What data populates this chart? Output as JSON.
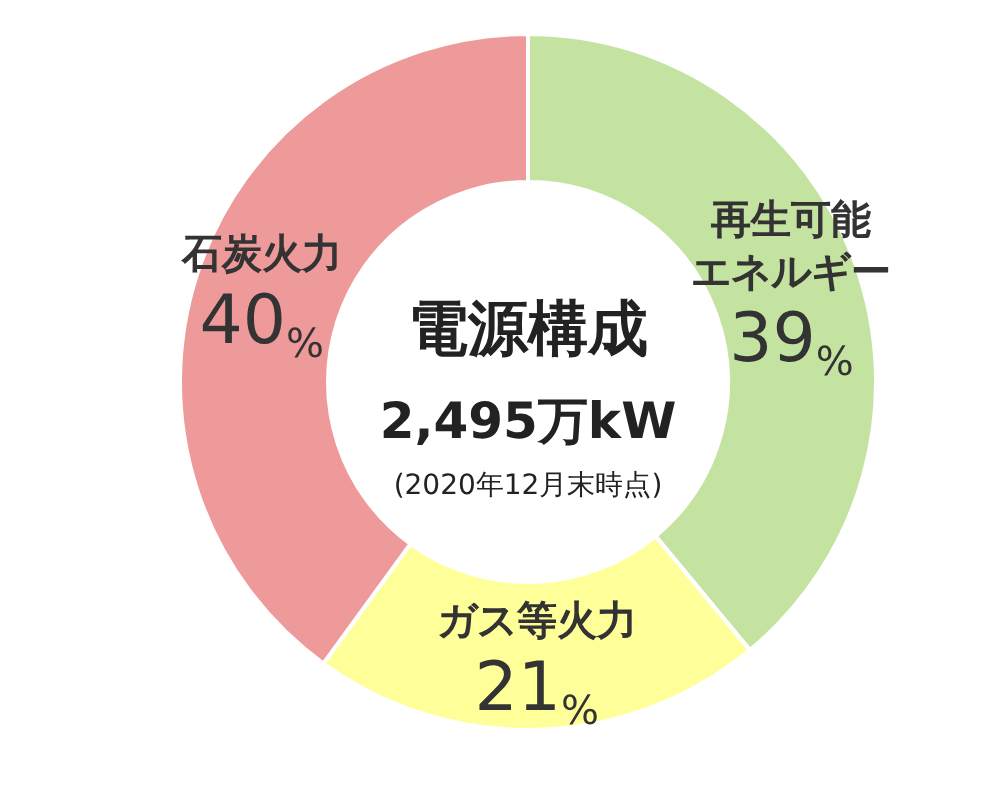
{
  "chart_data": {
    "type": "donut",
    "title": "電源構成",
    "subtitle": "2,495万kW",
    "annotations": [
      "(2020年12月末時点)"
    ],
    "categories": [
      "再生可能エネルギー",
      "ガス等火力",
      "石炭火力"
    ],
    "values": [
      39,
      21,
      40
    ],
    "colors": [
      "#c5e3a0",
      "#ffff99",
      "#ef9a9a"
    ],
    "value_labels": [
      "39%",
      "21%",
      "40%"
    ],
    "legend": false
  }
}
